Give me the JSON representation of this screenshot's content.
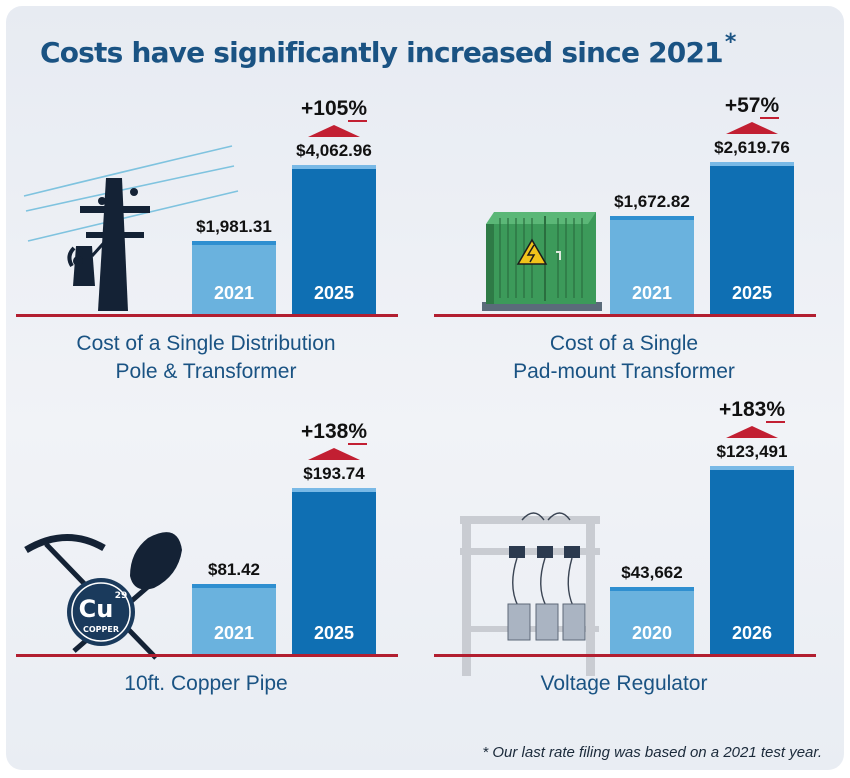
{
  "title": "Costs have significantly increased since 2021",
  "title_mark": "*",
  "footnote": "* Our last rate filing was based on a 2021 test year.",
  "colors": {
    "title": "#1a5383",
    "old_bar": "#6ab2de",
    "new_bar": "#0f6fb3",
    "accent_red": "#c21f32"
  },
  "icon_text": {
    "cu": "Cu",
    "atomic_number": "29",
    "copper": "COPPER"
  },
  "chart_data": [
    {
      "type": "bar",
      "title": "Cost of a Single Distribution Pole & Transformer",
      "categories": [
        "2021",
        "2025"
      ],
      "values": [
        1981.31,
        4062.96
      ],
      "value_labels": [
        "$1,981.31",
        "$4,062.96"
      ],
      "change_label": "+105%",
      "icon": "utility-pole-icon"
    },
    {
      "type": "bar",
      "title": "Cost of a Single Pad-mount Transformer",
      "categories": [
        "2021",
        "2025"
      ],
      "values": [
        1672.82,
        2619.76
      ],
      "value_labels": [
        "$1,672.82",
        "$2,619.76"
      ],
      "change_label": "+57%",
      "icon": "padmount-transformer-icon"
    },
    {
      "type": "bar",
      "title": "10ft. Copper Pipe",
      "categories": [
        "2021",
        "2025"
      ],
      "values": [
        81.42,
        193.74
      ],
      "value_labels": [
        "$81.42",
        "$193.74"
      ],
      "change_label": "+138%",
      "icon": "copper-mining-icon"
    },
    {
      "type": "bar",
      "title": "Voltage Regulator",
      "categories": [
        "2020",
        "2026"
      ],
      "values": [
        43662,
        123491
      ],
      "value_labels": [
        "$43,662",
        "$123,491"
      ],
      "change_label": "+183%",
      "icon": "voltage-regulator-icon"
    }
  ]
}
